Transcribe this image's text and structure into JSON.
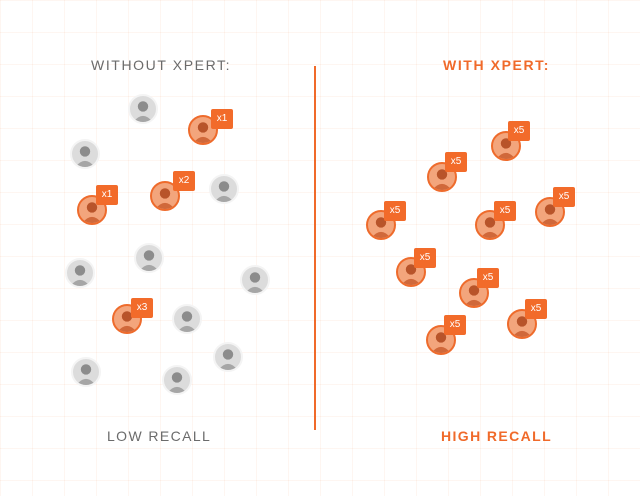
{
  "left_heading": "WITHOUT XPERT:",
  "right_heading": "WITH XPERT:",
  "left_footer": "LOW RECALL",
  "right_footer": "HIGH RECALL",
  "colors": {
    "accent": "#f06a2a",
    "muted": "#6b6b6b"
  },
  "left_badges": [
    "x1",
    "x2",
    "x1",
    "x3"
  ],
  "right_badges": [
    "x5",
    "x5",
    "x5",
    "x5",
    "x5",
    "x5",
    "x5",
    "x5",
    "x5"
  ]
}
